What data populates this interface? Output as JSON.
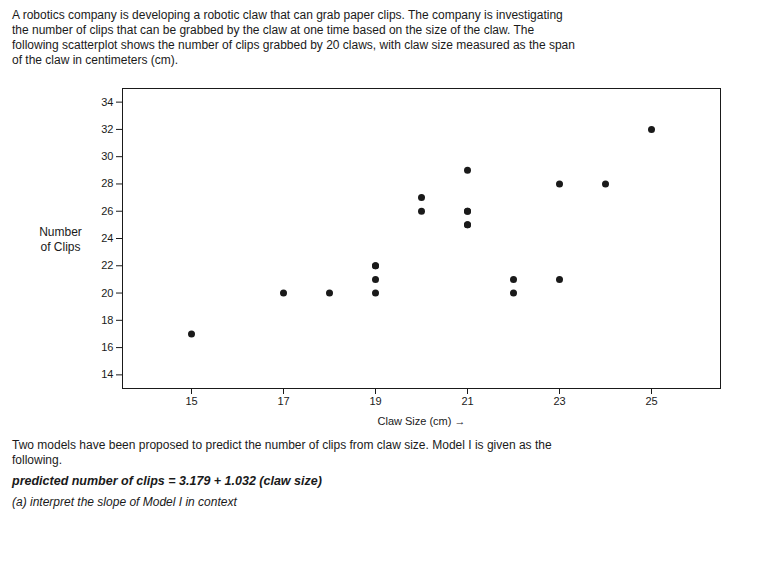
{
  "chart_data": {
    "type": "scatter",
    "title": "A robotics company is developing a robotic claw that can grab paper clips. The company is investigating\nthe number of clips that can be grabbed by the claw at one time based on the size of the claw. The\nfollowing scatterplot shows the number of clips grabbed by 20 claws, with claw size measured as the span\nof the claw in centimeters (cm).",
    "x": [
      15,
      17,
      18,
      19,
      19,
      19,
      19,
      20,
      20,
      21,
      21,
      21,
      21,
      21,
      22,
      22,
      23,
      23,
      24,
      25
    ],
    "values": [
      17,
      20,
      20,
      20,
      21,
      22,
      22,
      27,
      26,
      25,
      25,
      26,
      26,
      29,
      20,
      21,
      21,
      28,
      28,
      32
    ],
    "color": "#1a1a1a",
    "xlabel": "Claw Size (cm)",
    "ylabel": "Number\nof Clips",
    "xlim": [
      13.5,
      26.5
    ],
    "ylim": [
      13,
      35
    ],
    "xticks": [
      15,
      17,
      19,
      21,
      23,
      25
    ],
    "yticks": [
      14,
      16,
      18,
      20,
      22,
      24,
      26,
      28,
      30,
      32,
      34
    ],
    "grid": false,
    "annotations": [
      "Two models have been proposed to predict the number of clips from claw size. Model I is given as the\nfollowing.",
      "predicted number of clips = 3.179 + 1.032 (claw size)",
      "(a) interpret the slope of Model I in context"
    ]
  }
}
